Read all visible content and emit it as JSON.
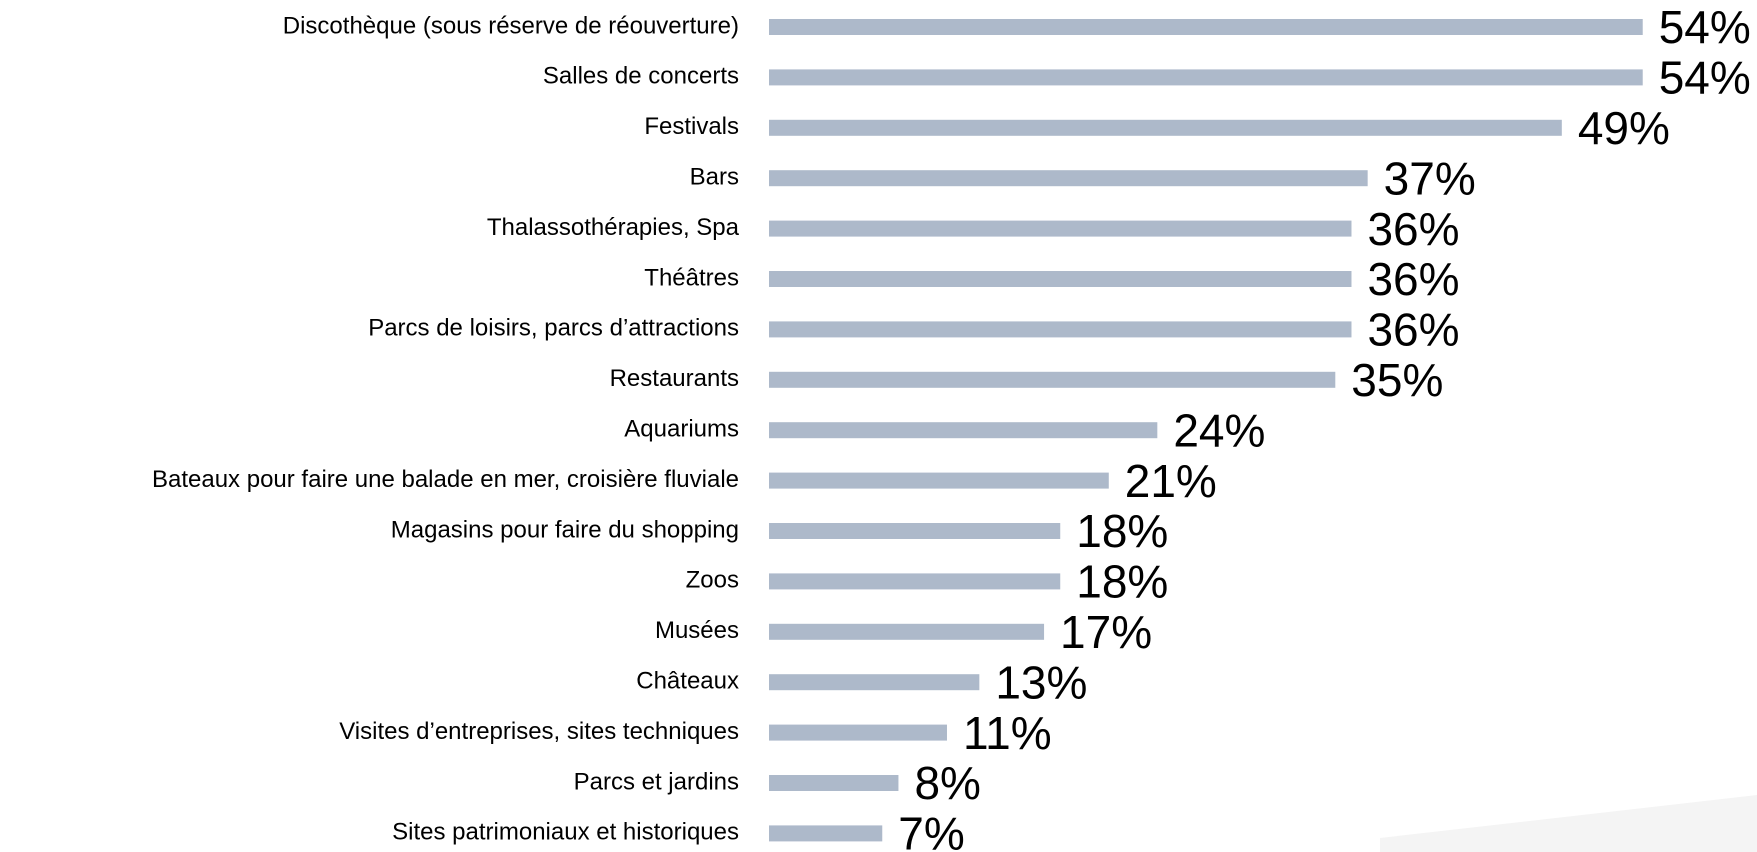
{
  "chart_data": {
    "type": "bar",
    "orientation": "horizontal",
    "color": "#adb9ca",
    "categories": [
      "Discothèque (sous réserve de réouverture)",
      "Salles de concerts",
      "Festivals",
      "Bars",
      "Thalassothérapies, Spa",
      "Théâtres",
      "Parcs de loisirs, parcs d’attractions",
      "Restaurants",
      "Aquariums",
      "Bateaux pour faire une balade en mer, croisière fluviale",
      "Magasins pour faire du shopping",
      "Zoos",
      "Musées",
      "Châteaux",
      "Visites d’entreprises, sites techniques",
      "Parcs et jardins",
      "Sites patrimoniaux et historiques"
    ],
    "values": [
      54,
      54,
      49,
      37,
      36,
      36,
      36,
      35,
      24,
      21,
      18,
      18,
      17,
      13,
      11,
      8,
      7
    ],
    "value_labels": [
      "54%",
      "54%",
      "49%",
      "37%",
      "36%",
      "36%",
      "36%",
      "35%",
      "24%",
      "21%",
      "18%",
      "18%",
      "17%",
      "13%",
      "11%",
      "8%",
      "7%"
    ]
  }
}
